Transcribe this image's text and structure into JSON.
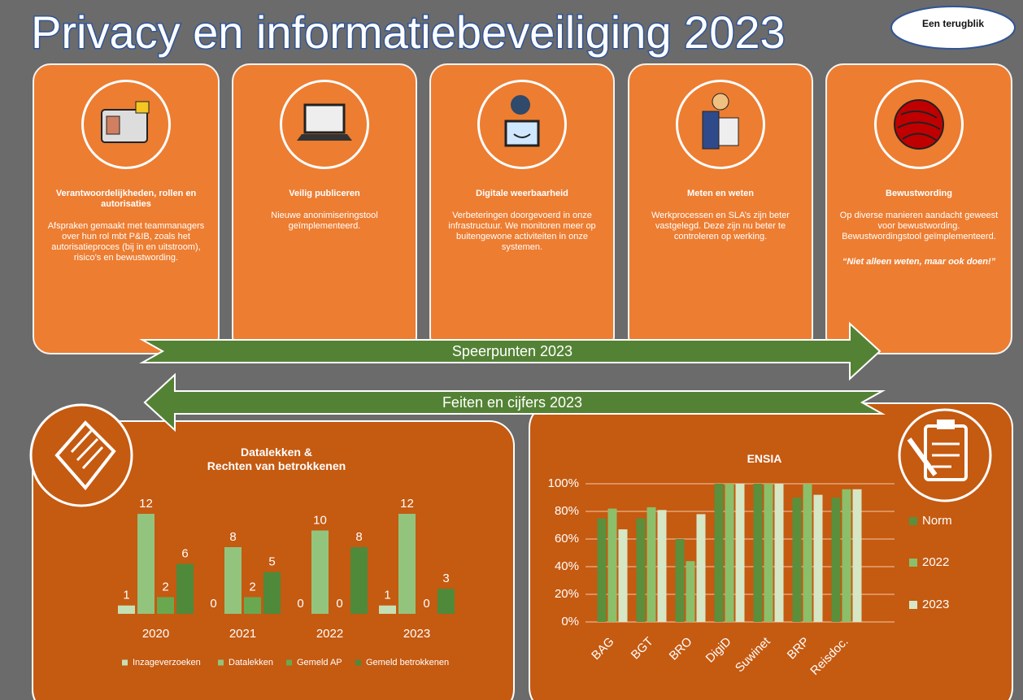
{
  "header": {
    "title": "Privacy en informatiebeveiliging 2023",
    "badge": "Een terugblik"
  },
  "cards": [
    {
      "title": "Verantwoordelijkheden, rollen en autorisaties",
      "text": "Afspraken gemaakt met teammanagers over hun rol mbt P&IB, zoals het autorisatieproces (bij in en uitstroom), risico’s en bewustwording."
    },
    {
      "title": "Veilig publiceren",
      "text": "Nieuwe anonimiseringstool geïmplementeerd."
    },
    {
      "title": "Digitale weerbaarheid",
      "text": "Verbeteringen doorgevoerd in onze infrastructuur. We monitoren meer op buitengewone activiteiten in onze systemen."
    },
    {
      "title": "Meten en weten",
      "text": "Werkprocessen en SLA’s zijn beter vastgelegd. Deze zijn nu beter te controleren op werking."
    },
    {
      "title": "Bewustwording",
      "text": "Op diverse manieren aandacht geweest voor bewustwording. Bewustwordingstool geïmplementeerd.",
      "quote": "“Niet alleen weten, maar ook doen!”"
    }
  ],
  "arrows": {
    "right": "Speerpunten 2023",
    "left": "Feiten en cijfers 2023"
  },
  "chart_data": [
    {
      "type": "bar",
      "title": "Datalekken &\nRechten van betrokkenen",
      "categories": [
        "2020",
        "2021",
        "2022",
        "2023"
      ],
      "series": [
        {
          "name": "Inzageverzoeken",
          "color": "#c5e0b4",
          "values": [
            1,
            0,
            0,
            1
          ]
        },
        {
          "name": "Datalekken",
          "color": "#93c47d",
          "values": [
            12,
            8,
            10,
            12
          ]
        },
        {
          "name": "Gemeld AP",
          "color": "#6aa84f",
          "values": [
            2,
            2,
            0,
            0
          ]
        },
        {
          "name": "Gemeld betrokkenen",
          "color": "#4e8a3a",
          "values": [
            6,
            5,
            8,
            3
          ]
        }
      ],
      "data_labels": true
    },
    {
      "type": "bar",
      "title": "ENSIA",
      "categories": [
        "BAG",
        "BGT",
        "BRO",
        "DigiD",
        "Suwinet",
        "BRP",
        "Reisdoc."
      ],
      "series": [
        {
          "name": "Norm",
          "color": "#5b8f3c",
          "values": [
            75,
            75,
            60,
            100,
            100,
            90,
            90
          ]
        },
        {
          "name": "2022",
          "color": "#8cbf6a",
          "values": [
            82,
            83,
            44,
            100,
            100,
            100,
            96
          ]
        },
        {
          "name": "2023",
          "color": "#d6e7c6",
          "values": [
            67,
            81,
            78,
            100,
            100,
            92,
            96
          ]
        }
      ],
      "ylim": [
        0,
        100
      ],
      "yticks": [
        {
          "value": 0,
          "label": "0%"
        },
        {
          "value": 20,
          "label": "20%"
        },
        {
          "value": 40,
          "label": "40%"
        },
        {
          "value": 60,
          "label": "60%"
        },
        {
          "value": 80,
          "label": "80%"
        },
        {
          "value": 100,
          "label": "100%"
        }
      ],
      "grid": true,
      "legend": "right"
    }
  ]
}
